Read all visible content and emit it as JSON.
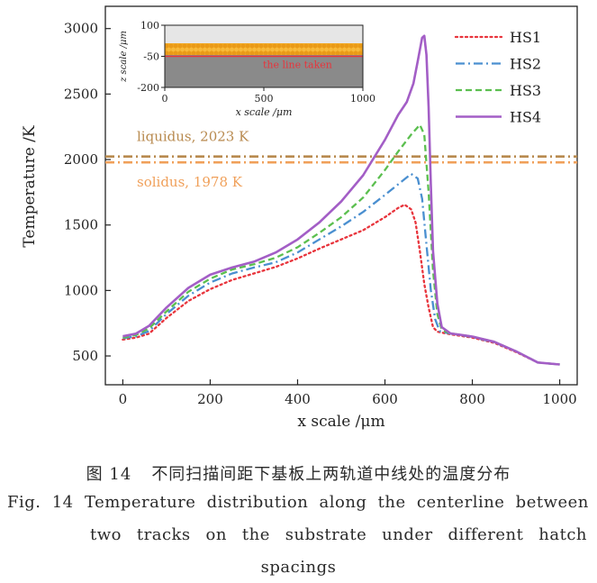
{
  "chart_data": [
    {
      "type": "line",
      "title": "",
      "xlabel": "x scale /μm",
      "ylabel": "Temperature /K",
      "xlim": [
        -40,
        1040
      ],
      "ylim": [
        280,
        3170
      ],
      "xticks": [
        0,
        200,
        400,
        600,
        800,
        1000
      ],
      "yticks": [
        500,
        1000,
        1500,
        2000,
        2500,
        3000
      ],
      "grid": false,
      "legend_position": "top-right",
      "series": [
        {
          "name": "HS1",
          "color": "#e8343c",
          "style": "dotted",
          "x": [
            0,
            30,
            60,
            100,
            150,
            200,
            250,
            300,
            350,
            400,
            450,
            500,
            550,
            600,
            630,
            645,
            660,
            670,
            680,
            690,
            700,
            710,
            720,
            750,
            800,
            850,
            900,
            950,
            1000
          ],
          "y": [
            625,
            640,
            670,
            790,
            920,
            1010,
            1080,
            1130,
            1180,
            1245,
            1320,
            1390,
            1460,
            1560,
            1630,
            1655,
            1620,
            1520,
            1300,
            1050,
            870,
            720,
            685,
            665,
            640,
            600,
            530,
            450,
            435
          ]
        },
        {
          "name": "HS2",
          "color": "#4a8fd0",
          "style": "dashdot",
          "x": [
            0,
            30,
            60,
            100,
            150,
            200,
            250,
            300,
            350,
            400,
            450,
            500,
            550,
            600,
            630,
            660,
            675,
            685,
            695,
            705,
            715,
            725,
            750,
            800,
            850,
            900,
            950,
            1000
          ],
          "y": [
            635,
            650,
            690,
            820,
            960,
            1060,
            1130,
            1175,
            1215,
            1290,
            1390,
            1490,
            1600,
            1730,
            1810,
            1890,
            1855,
            1700,
            1350,
            1000,
            780,
            690,
            670,
            645,
            605,
            535,
            450,
            435
          ]
        },
        {
          "name": "HS3",
          "color": "#5bbf4f",
          "style": "dashed",
          "x": [
            0,
            30,
            60,
            100,
            150,
            200,
            250,
            300,
            350,
            400,
            450,
            500,
            550,
            600,
            630,
            660,
            680,
            690,
            700,
            710,
            720,
            730,
            750,
            800,
            850,
            900,
            950,
            1000
          ],
          "y": [
            640,
            660,
            710,
            840,
            990,
            1090,
            1160,
            1200,
            1250,
            1330,
            1440,
            1560,
            1710,
            1920,
            2060,
            2190,
            2265,
            2190,
            1750,
            1150,
            820,
            700,
            672,
            648,
            608,
            535,
            450,
            435
          ]
        },
        {
          "name": "HS4",
          "color": "#a35ec6",
          "style": "solid",
          "x": [
            0,
            30,
            60,
            100,
            150,
            200,
            250,
            300,
            350,
            400,
            450,
            500,
            550,
            600,
            630,
            650,
            665,
            675,
            685,
            690,
            695,
            700,
            705,
            710,
            720,
            730,
            750,
            800,
            850,
            900,
            950,
            1000
          ],
          "y": [
            650,
            670,
            730,
            870,
            1020,
            1120,
            1175,
            1220,
            1290,
            1390,
            1520,
            1680,
            1880,
            2150,
            2340,
            2440,
            2580,
            2750,
            2930,
            2945,
            2800,
            2400,
            1800,
            1300,
            900,
            720,
            672,
            648,
            608,
            535,
            450,
            435
          ]
        }
      ],
      "reference_lines": [
        {
          "label": "liquidus, 2023 K",
          "value": 2023,
          "color": "#b88a4f",
          "style": "dashdot"
        },
        {
          "label": "solidus, 1978 K",
          "value": 1978,
          "color": "#f0a05a",
          "style": "dashdot"
        }
      ]
    },
    {
      "type": "inset",
      "xlabel": "x scale /μm",
      "ylabel": "z scale /μm",
      "xlim": [
        0,
        1000
      ],
      "ylim": [
        -200,
        100
      ],
      "xticks": [
        0,
        500,
        1000
      ],
      "yticks": [
        100,
        -50,
        -200
      ],
      "annotation": "the line taken",
      "line_z": -50,
      "annotation_color": "#e8343c",
      "layers": [
        {
          "role": "gas",
          "color": "#e6e6e6"
        },
        {
          "role": "powder",
          "color": "#f2a822"
        },
        {
          "role": "substrate",
          "color": "#8a8a8a"
        }
      ]
    }
  ],
  "caption": {
    "zh_label": "图 14",
    "zh_text": "不同扫描间距下基板上两轨道中线处的温度分布",
    "en_label": "Fig. 14",
    "en_line1": "Temperature distribution along the centerline between",
    "en_line2": "two tracks on the substrate under different hatch",
    "en_line3": "spacings"
  }
}
